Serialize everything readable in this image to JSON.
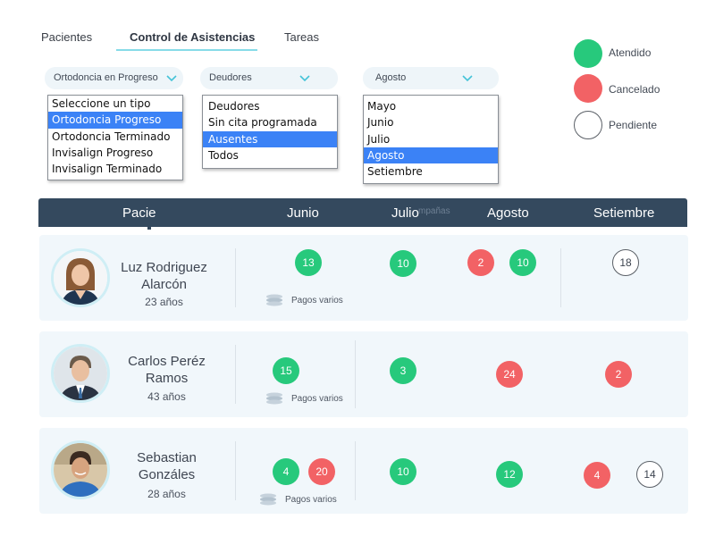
{
  "tabs": [
    {
      "label": "Pacientes"
    },
    {
      "label": "Control de Asistencias",
      "active": true
    },
    {
      "label": "Tareas"
    }
  ],
  "filters": [
    {
      "value": "Ortodoncia en Progreso",
      "options": [
        "Seleccione un tipo",
        "Ortodoncia Progreso",
        "Ortodoncia Terminado",
        "Invisalign Progreso",
        "Invisalign Terminado"
      ],
      "selected": "Ortodoncia Progreso"
    },
    {
      "value": "Deudores",
      "options": [
        "Deudores",
        "Sin cita programada",
        "Ausentes",
        "Todos"
      ],
      "selected": "Ausentes"
    },
    {
      "value": "Agosto",
      "options": [
        "Mayo",
        "Junio",
        "Julio",
        "Agosto",
        "Setiembre"
      ],
      "selected": "Agosto"
    }
  ],
  "legend": [
    {
      "label": "Atendido",
      "color": "#27c97c"
    },
    {
      "label": "Cancelado",
      "color": "#f26265"
    },
    {
      "label": "Pendiente",
      "color": "#ffffff"
    }
  ],
  "table": {
    "headers": [
      "Pacie",
      "Junio",
      "Julio",
      "Agosto",
      "Setiembre"
    ],
    "ghost": "mpañas",
    "rows": [
      {
        "name_line1": "Luz Rodriguez",
        "name_line2": "Alarcón",
        "age": "23 años",
        "payments_label": "Pagos varios",
        "badges": [
          {
            "value": "13",
            "status": "attended"
          },
          {
            "value": "10",
            "status": "attended"
          },
          {
            "value": "2",
            "status": "cancelled"
          },
          {
            "value": "10",
            "status": "attended"
          },
          {
            "value": "18",
            "status": "pending"
          }
        ]
      },
      {
        "name_line1": "Carlos Peréz",
        "name_line2": "Ramos",
        "age": "43 años",
        "payments_label": "Pagos varios",
        "badges": [
          {
            "value": "15",
            "status": "attended"
          },
          {
            "value": "3",
            "status": "attended"
          },
          {
            "value": "24",
            "status": "cancelled"
          },
          {
            "value": "2",
            "status": "cancelled"
          }
        ]
      },
      {
        "name_line1": "Sebastian",
        "name_line2": "Gonzáles",
        "age": "28 años",
        "payments_label": "Pagos varios",
        "badges": [
          {
            "value": "4",
            "status": "attended"
          },
          {
            "value": "20",
            "status": "cancelled"
          },
          {
            "value": "10",
            "status": "attended"
          },
          {
            "value": "12",
            "status": "attended"
          },
          {
            "value": "4",
            "status": "cancelled"
          },
          {
            "value": "14",
            "status": "pending"
          }
        ]
      }
    ]
  }
}
